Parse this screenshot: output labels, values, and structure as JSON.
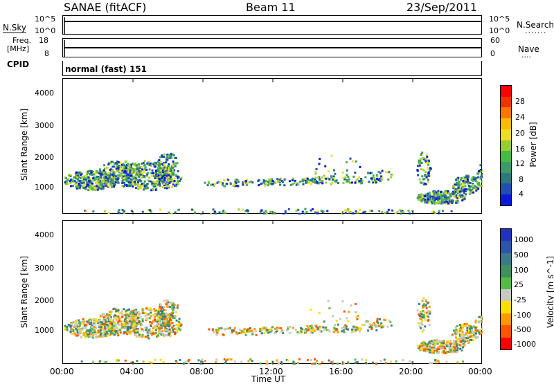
{
  "header": {
    "station": "SANAE (fitACF)",
    "beam": "Beam 11",
    "date": "23/Sep/2011"
  },
  "strip_labels": {
    "nsky": "N.Sky",
    "nsky_top": "10^5",
    "nsky_bot": "10^0",
    "nsearch": "N.Search",
    "nsearch_top": "10^5",
    "nsearch_bot": "10^0",
    "freq_line1": "Freq.",
    "freq_line2": "[MHz]",
    "freq_top": "18",
    "freq_bot": "8",
    "nave": "Nave",
    "nave_top": "60",
    "nave_bot": "0",
    "cpid": "CPID",
    "mode": "normal (fast) 151"
  },
  "xaxis": {
    "title": "Time UT",
    "ticks": [
      "00:00",
      "04:00",
      "08:00",
      "12:00",
      "16:00",
      "20:00",
      "00:00"
    ]
  },
  "chart_data": [
    {
      "type": "heatmap",
      "title": "",
      "xlabel": "Time UT",
      "ylabel": "Slant Range [km]",
      "yticks": [
        "4000",
        "3000",
        "2000",
        "1000"
      ],
      "xlim": [
        "00:00",
        "24:00"
      ],
      "ylim": [
        180,
        4500
      ],
      "colorbar": {
        "label": "Power [dB]",
        "ticks": [
          "28",
          "24",
          "20",
          "16",
          "12",
          "8",
          "4"
        ],
        "colors": [
          "#ff0000",
          "#ee3300",
          "#ff7700",
          "#ffbb00",
          "#eedd22",
          "#99cc33",
          "#44bb44",
          "#3a9a6a",
          "#2a7a7a",
          "#1f4fb0",
          "#0a1ad8"
        ]
      },
      "values_note": ""
    },
    {
      "type": "heatmap",
      "title": "",
      "xlabel": "Time UT",
      "ylabel": "Slant Range [km]",
      "yticks": [
        "4000",
        "3000",
        "2000",
        "1000"
      ],
      "xlim": [
        "00:00",
        "24:00"
      ],
      "ylim": [
        180,
        4500
      ],
      "colorbar": {
        "label": "Velocity [m s^-1]",
        "ticks": [
          "1000",
          "500",
          "100",
          "25",
          "-25",
          "-100",
          "-500",
          "-1000"
        ],
        "colors": [
          "#2233bb",
          "#2a55aa",
          "#3a7a8a",
          "#3f8f5f",
          "#55bb44",
          "#c8c8c0",
          "#ffdd00",
          "#ff9900",
          "#ff5500",
          "#ff0000"
        ]
      }
    }
  ]
}
